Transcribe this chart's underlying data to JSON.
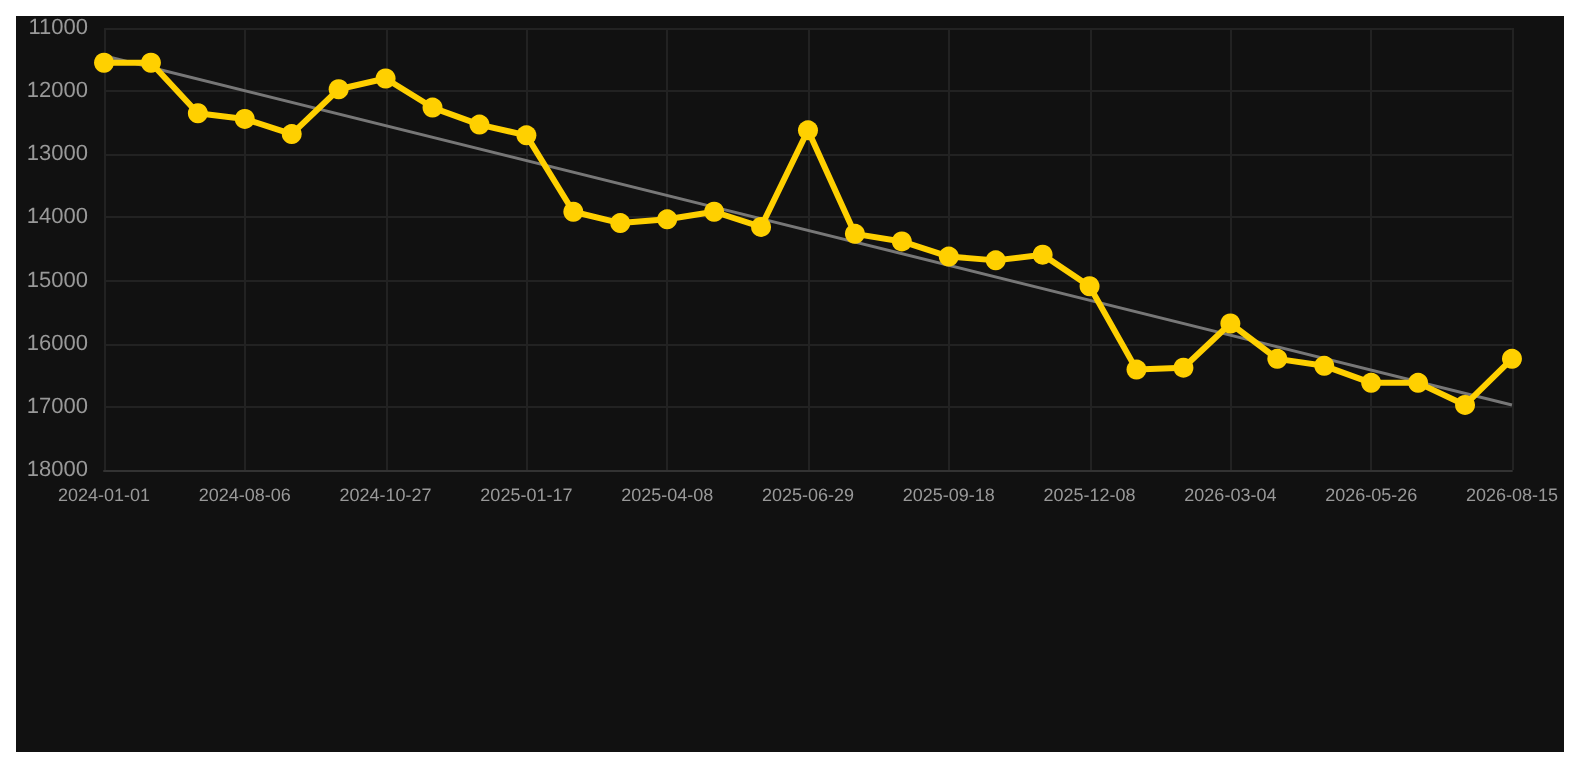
{
  "chart_data": {
    "type": "line",
    "categories": [
      "2024-01-01",
      null,
      null,
      "2024-08-06",
      null,
      null,
      "2024-10-27",
      null,
      null,
      "2025-01-17",
      null,
      null,
      "2025-04-08",
      null,
      null,
      "2025-06-29",
      null,
      null,
      "2025-09-18",
      null,
      null,
      "2025-12-08",
      null,
      null,
      "2026-03-04",
      null,
      null,
      "2026-05-26",
      null,
      null,
      "2026-08-15"
    ],
    "series": [
      {
        "color": "#ffd000",
        "values": [
          11550,
          11550,
          12350,
          12440,
          12680,
          11970,
          11800,
          12260,
          12530,
          12700,
          13910,
          14090,
          14030,
          13910,
          14150,
          12620,
          14260,
          14380,
          14620,
          14680,
          14590,
          15090,
          16410,
          16380,
          15680,
          16240,
          16350,
          16620,
          16620,
          16970,
          16240
        ]
      },
      {
        "type": "line",
        "color": "#777777",
        "values": [
          11440,
          null,
          null,
          null,
          null,
          null,
          null,
          null,
          null,
          null,
          null,
          null,
          null,
          null,
          null,
          null,
          null,
          null,
          null,
          null,
          null,
          null,
          null,
          null,
          null,
          null,
          null,
          null,
          null,
          null,
          16970
        ],
        "marker": "none"
      }
    ],
    "ylim": [
      18000,
      11000
    ],
    "yticks": [
      11000,
      12000,
      13000,
      14000,
      15000,
      16000,
      17000,
      18000
    ],
    "grid": true,
    "marker": "circle"
  }
}
